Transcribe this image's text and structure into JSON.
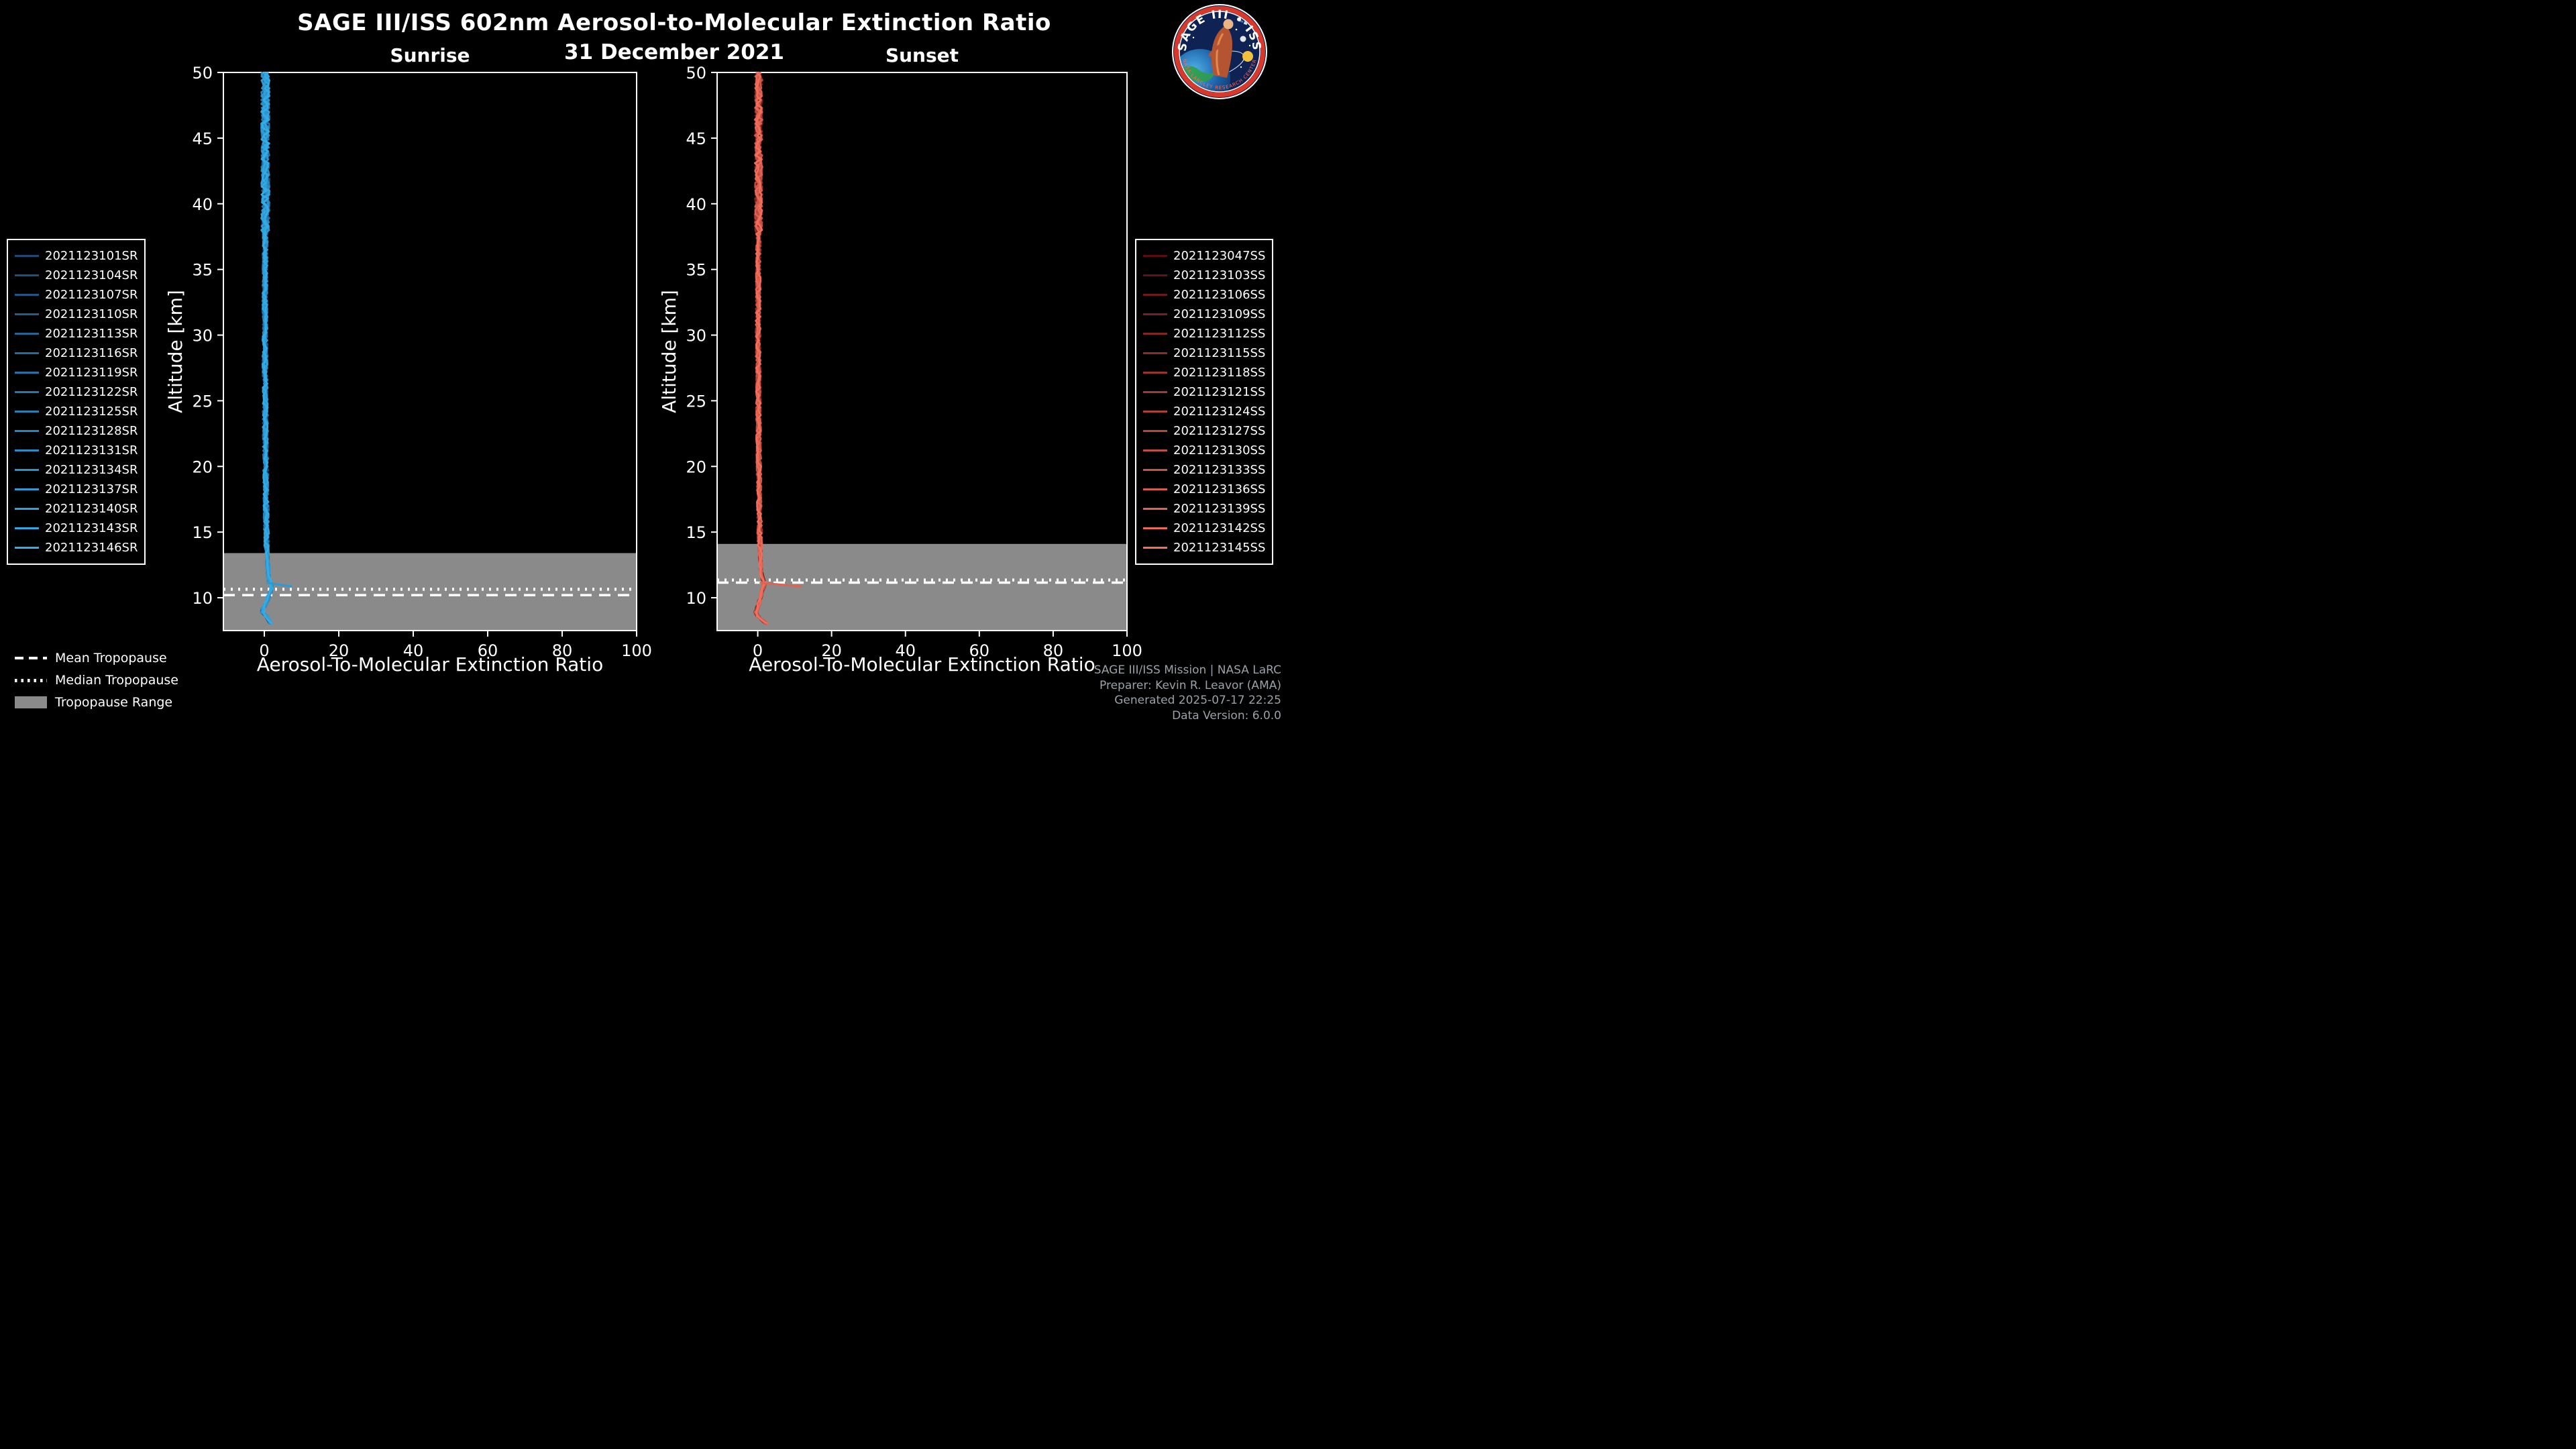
{
  "title": "SAGE III/ISS 602nm Aerosol-to-Molecular Extinction Ratio",
  "subtitle": "31 December 2021",
  "logo": {
    "title": "SAGE III • ISS",
    "ring_text": "NASA LANGLEY RESEARCH CENTER"
  },
  "footer": {
    "lines": [
      "SAGE III/ISS Mission | NASA LaRC",
      "Preparer: Kevin R. Leavor (AMA)",
      "Generated 2025-07-17 22:25",
      "Data Version: 6.0.0"
    ]
  },
  "tropopause_legend": [
    {
      "label": "Mean Tropopause",
      "style": "dashed"
    },
    {
      "label": "Median Tropopause",
      "style": "dotted"
    },
    {
      "label": "Tropopause Range",
      "style": "band"
    }
  ],
  "band_color": "#8a8a8a",
  "chart_data": [
    {
      "type": "line",
      "panel": "Sunrise",
      "xlabel": "Aerosol-To-Molecular Extinction Ratio",
      "ylabel": "Altitude [km]",
      "xlim": [
        -11,
        100
      ],
      "ylim": [
        7.5,
        50
      ],
      "xticks": [
        0,
        20,
        40,
        60,
        80,
        100
      ],
      "yticks": [
        10,
        15,
        20,
        25,
        30,
        35,
        40,
        45,
        50
      ],
      "legend_position": "left",
      "color_start": "#1c4a78",
      "color_end": "#33ade8",
      "mean_tropopause_km": 10.2,
      "median_tropopause_km": 10.65,
      "tropopause_range_km": [
        7.5,
        13.4
      ],
      "series": [
        "2021123101SR",
        "2021123104SR",
        "2021123107SR",
        "2021123110SR",
        "2021123113SR",
        "2021123116SR",
        "2021123119SR",
        "2021123122SR",
        "2021123125SR",
        "2021123128SR",
        "2021123131SR",
        "2021123134SR",
        "2021123137SR",
        "2021123140SR",
        "2021123143SR",
        "2021123146SR"
      ],
      "profiles": {
        "top_km": 50,
        "bottom_km": 7.8,
        "step_km": 0.3,
        "noise_amp": 0.75,
        "anchors": [
          [
            50,
            0.3
          ],
          [
            45,
            0.25
          ],
          [
            40,
            0.3
          ],
          [
            35,
            0.2
          ],
          [
            30,
            0.15
          ],
          [
            25,
            0.25
          ],
          [
            20,
            0.35
          ],
          [
            15,
            0.55
          ],
          [
            13,
            0.8
          ],
          [
            11.5,
            1.1
          ],
          [
            10.8,
            2.2
          ],
          [
            10.2,
            1.2
          ],
          [
            9.6,
            0.6
          ],
          [
            9.0,
            -0.8
          ],
          [
            8.5,
            0.8
          ],
          [
            7.8,
            2.2
          ]
        ],
        "spur": {
          "series_index": 12,
          "altitude_km": 10.9,
          "peak_value": 7.5
        }
      }
    },
    {
      "type": "line",
      "panel": "Sunset",
      "xlabel": "Aerosol-To-Molecular Extinction Ratio",
      "ylabel": "Altitude [km]",
      "xlim": [
        -11,
        100
      ],
      "ylim": [
        7.5,
        50
      ],
      "xticks": [
        0,
        20,
        40,
        60,
        80,
        100
      ],
      "yticks": [
        10,
        15,
        20,
        25,
        30,
        35,
        40,
        45,
        50
      ],
      "legend_position": "right",
      "color_start": "#5a0c10",
      "color_end": "#f2705c",
      "mean_tropopause_km": 11.15,
      "median_tropopause_km": 11.35,
      "tropopause_range_km": [
        7.5,
        14.1
      ],
      "series": [
        "2021123047SS",
        "2021123103SS",
        "2021123106SS",
        "2021123109SS",
        "2021123112SS",
        "2021123115SS",
        "2021123118SS",
        "2021123121SS",
        "2021123124SS",
        "2021123127SS",
        "2021123130SS",
        "2021123133SS",
        "2021123136SS",
        "2021123139SS",
        "2021123142SS",
        "2021123145SS"
      ],
      "profiles": {
        "top_km": 50,
        "bottom_km": 7.8,
        "step_km": 0.3,
        "noise_amp": 0.7,
        "anchors": [
          [
            50,
            0.3
          ],
          [
            45,
            0.2
          ],
          [
            40,
            0.25
          ],
          [
            35,
            0.15
          ],
          [
            30,
            0.1
          ],
          [
            25,
            0.2
          ],
          [
            20,
            0.3
          ],
          [
            15,
            0.5
          ],
          [
            13,
            0.7
          ],
          [
            11.8,
            1.0
          ],
          [
            11.0,
            1.8
          ],
          [
            10.4,
            1.0
          ],
          [
            9.6,
            0.4
          ],
          [
            8.8,
            -0.7
          ],
          [
            8.3,
            1.2
          ],
          [
            7.8,
            3.2
          ]
        ],
        "spur": {
          "series_index": 13,
          "altitude_km": 10.9,
          "peak_value": 12
        }
      }
    }
  ]
}
